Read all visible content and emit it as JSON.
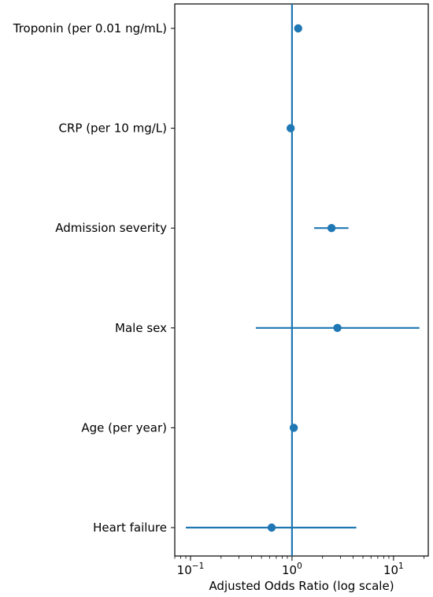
{
  "chart_data": {
    "type": "scatter",
    "subtype": "forest-plot",
    "title": "",
    "xlabel": "Adjusted Odds Ratio (log scale)",
    "ylabel": "",
    "xscale": "log",
    "xlim": [
      0.07,
      22
    ],
    "x_ticks": [
      {
        "value": 0.1,
        "base": "10",
        "exp": "−1"
      },
      {
        "value": 1,
        "base": "10",
        "exp": "0"
      },
      {
        "value": 10,
        "base": "10",
        "exp": "1"
      }
    ],
    "reference_line": 1,
    "grid": false,
    "legend": "none",
    "color": "#1f77b4",
    "rows": [
      {
        "label": "Troponin (per 0.01 ng/mL)",
        "or": 1.15,
        "lo": 1.15,
        "hi": 1.15
      },
      {
        "label": "CRP (per 10 mg/L)",
        "or": 0.97,
        "lo": 0.97,
        "hi": 0.97
      },
      {
        "label": "Admission severity",
        "or": 2.45,
        "lo": 1.65,
        "hi": 3.6
      },
      {
        "label": "Male sex",
        "or": 2.8,
        "lo": 0.44,
        "hi": 18
      },
      {
        "label": "Age (per year)",
        "or": 1.04,
        "lo": 1.04,
        "hi": 1.04
      },
      {
        "label": "Heart failure",
        "or": 0.63,
        "lo": 0.09,
        "hi": 4.3
      }
    ]
  }
}
